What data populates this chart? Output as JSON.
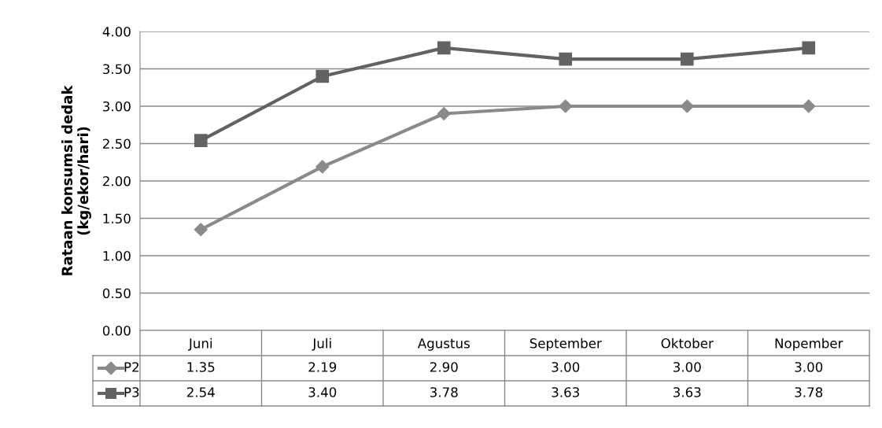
{
  "chart_data": {
    "type": "line",
    "ylabel": "Rataan konsumsi dedak\n(kg/ekor/hari)",
    "categories": [
      "Juni",
      "Juli",
      "Agustus",
      "September",
      "Oktober",
      "Nopember"
    ],
    "series": [
      {
        "name": "P2",
        "color": "#8a8a8a",
        "marker": "diamond",
        "values": [
          1.35,
          2.19,
          2.9,
          3.0,
          3.0,
          3.0
        ],
        "value_labels": [
          "1.35",
          "2.19",
          "2.90",
          "3.00",
          "3.00",
          "3.00"
        ]
      },
      {
        "name": "P3",
        "color": "#626262",
        "marker": "square",
        "values": [
          2.54,
          3.4,
          3.78,
          3.63,
          3.63,
          3.78
        ],
        "value_labels": [
          "2.54",
          "3.40",
          "3.78",
          "3.63",
          "3.63",
          "3.78"
        ]
      }
    ],
    "ylim": [
      0,
      4
    ],
    "yticks": [
      {
        "value": 0,
        "label": "0.00"
      },
      {
        "value": 0.5,
        "label": "0.50"
      },
      {
        "value": 1,
        "label": "1.00"
      },
      {
        "value": 1.5,
        "label": "1.50"
      },
      {
        "value": 2,
        "label": "2.00"
      },
      {
        "value": 2.5,
        "label": "2.50"
      },
      {
        "value": 3,
        "label": "3.00"
      },
      {
        "value": 3.5,
        "label": "3.50"
      },
      {
        "value": 4,
        "label": "4.00"
      }
    ],
    "grid": "y",
    "legend": "bottom left",
    "line_style": "solid"
  }
}
